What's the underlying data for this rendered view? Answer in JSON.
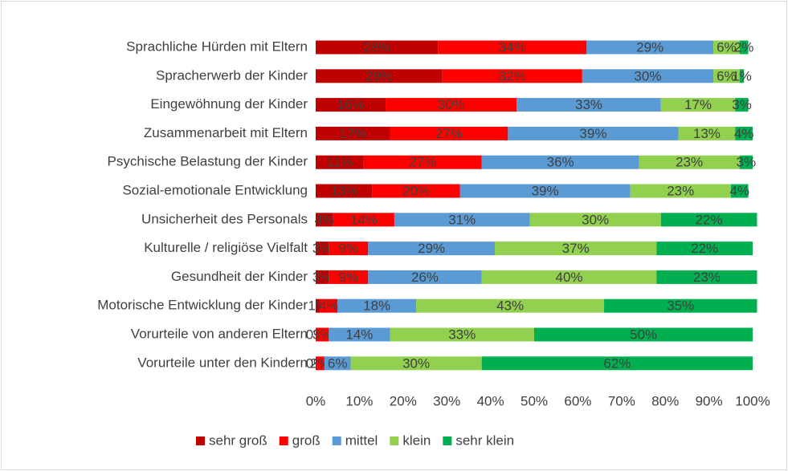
{
  "chart_data": {
    "type": "stacked_barh",
    "categories": [
      "Sprachliche Hürden mit Eltern",
      "Spracherwerb der Kinder",
      "Eingewöhnung der Kinder",
      "Zusammenarbeit mit Eltern",
      "Psychische Belastung der Kinder",
      "Sozial-emotionale Entwicklung",
      "Unsicherheit des Personals",
      "Kulturelle / religiöse Vielfalt",
      "Gesundheit der Kinder",
      "Motorische Entwicklung der Kinder",
      "Vorurteile von anderen Eltern",
      "Vorurteile unter den Kindern"
    ],
    "series": [
      {
        "name": "sehr groß",
        "color": "#c00000",
        "values": [
          28,
          29,
          16,
          17,
          11,
          13,
          4,
          3,
          3,
          1,
          0,
          0
        ],
        "value_labels": [
          "28%",
          "29%",
          "16%",
          "17%",
          "11%",
          "13%",
          "4%",
          "3%",
          "3%",
          "1%",
          "0%",
          "0%"
        ]
      },
      {
        "name": "groß",
        "color": "#ff0000",
        "values": [
          34,
          32,
          30,
          27,
          27,
          20,
          14,
          9,
          9,
          4,
          3,
          2
        ],
        "value_labels": [
          "34%",
          "32%",
          "30%",
          "27%",
          "27%",
          "20%",
          "14%",
          "9%",
          "9%",
          "4%",
          "3%",
          "2%"
        ]
      },
      {
        "name": "mittel",
        "color": "#5b9bd5",
        "values": [
          29,
          30,
          33,
          39,
          36,
          39,
          31,
          29,
          26,
          18,
          14,
          6
        ],
        "value_labels": [
          "29%",
          "30%",
          "33%",
          "39%",
          "36%",
          "39%",
          "31%",
          "29%",
          "26%",
          "18%",
          "14%",
          "6%"
        ]
      },
      {
        "name": "klein",
        "color": "#92d050",
        "values": [
          6,
          6,
          17,
          13,
          23,
          23,
          30,
          37,
          40,
          43,
          33,
          30
        ],
        "value_labels": [
          "6%",
          "6%",
          "17%",
          "13%",
          "23%",
          "23%",
          "30%",
          "37%",
          "40%",
          "43%",
          "33%",
          "30%"
        ]
      },
      {
        "name": "sehr klein",
        "color": "#00b050",
        "values": [
          2,
          1,
          3,
          4,
          3,
          4,
          22,
          22,
          23,
          35,
          50,
          62
        ],
        "value_labels": [
          "2%",
          "1%",
          "3%",
          "4%",
          "3%",
          "4%",
          "22%",
          "22%",
          "23%",
          "35%",
          "50%",
          "62%"
        ]
      }
    ],
    "xlim": [
      0,
      100
    ],
    "xticks": [
      {
        "value": 0,
        "label": "0%"
      },
      {
        "value": 10,
        "label": "10%"
      },
      {
        "value": 20,
        "label": "20%"
      },
      {
        "value": 30,
        "label": "30%"
      },
      {
        "value": 40,
        "label": "40%"
      },
      {
        "value": 50,
        "label": "50%"
      },
      {
        "value": 60,
        "label": "60%"
      },
      {
        "value": 70,
        "label": "70%"
      },
      {
        "value": 80,
        "label": "80%"
      },
      {
        "value": 90,
        "label": "90%"
      },
      {
        "value": 100,
        "label": "100%"
      }
    ],
    "legend": "bottom"
  }
}
